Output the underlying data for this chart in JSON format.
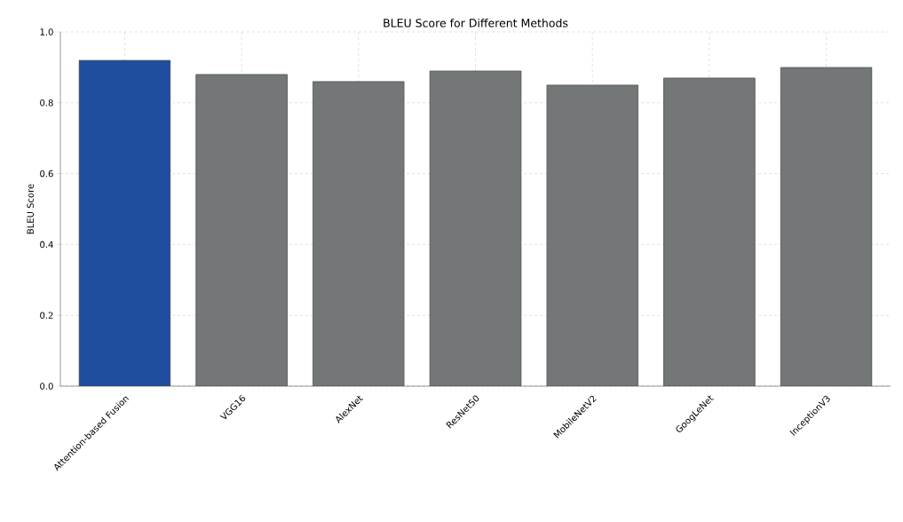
{
  "chart_data": {
    "type": "bar",
    "title": "BLEU Score for Different Methods",
    "ylabel": "BLEU Score",
    "categories": [
      "Attention-based Fusion",
      "VGG16",
      "AlexNet",
      "ResNet50",
      "MobileNetV2",
      "GoogLeNet",
      "InceptionV3"
    ],
    "values": [
      0.92,
      0.88,
      0.86,
      0.89,
      0.85,
      0.87,
      0.9
    ],
    "colors": [
      "#1f4e9e",
      "#737778",
      "#737778",
      "#737778",
      "#737778",
      "#737778",
      "#737778"
    ],
    "ylim": [
      0,
      1.0
    ],
    "yticks": [
      {
        "value": 0,
        "label": "0.0"
      },
      0.2,
      0.4,
      0.6,
      0.8,
      {
        "value": 1,
        "label": "1.0"
      }
    ],
    "grid": true
  }
}
